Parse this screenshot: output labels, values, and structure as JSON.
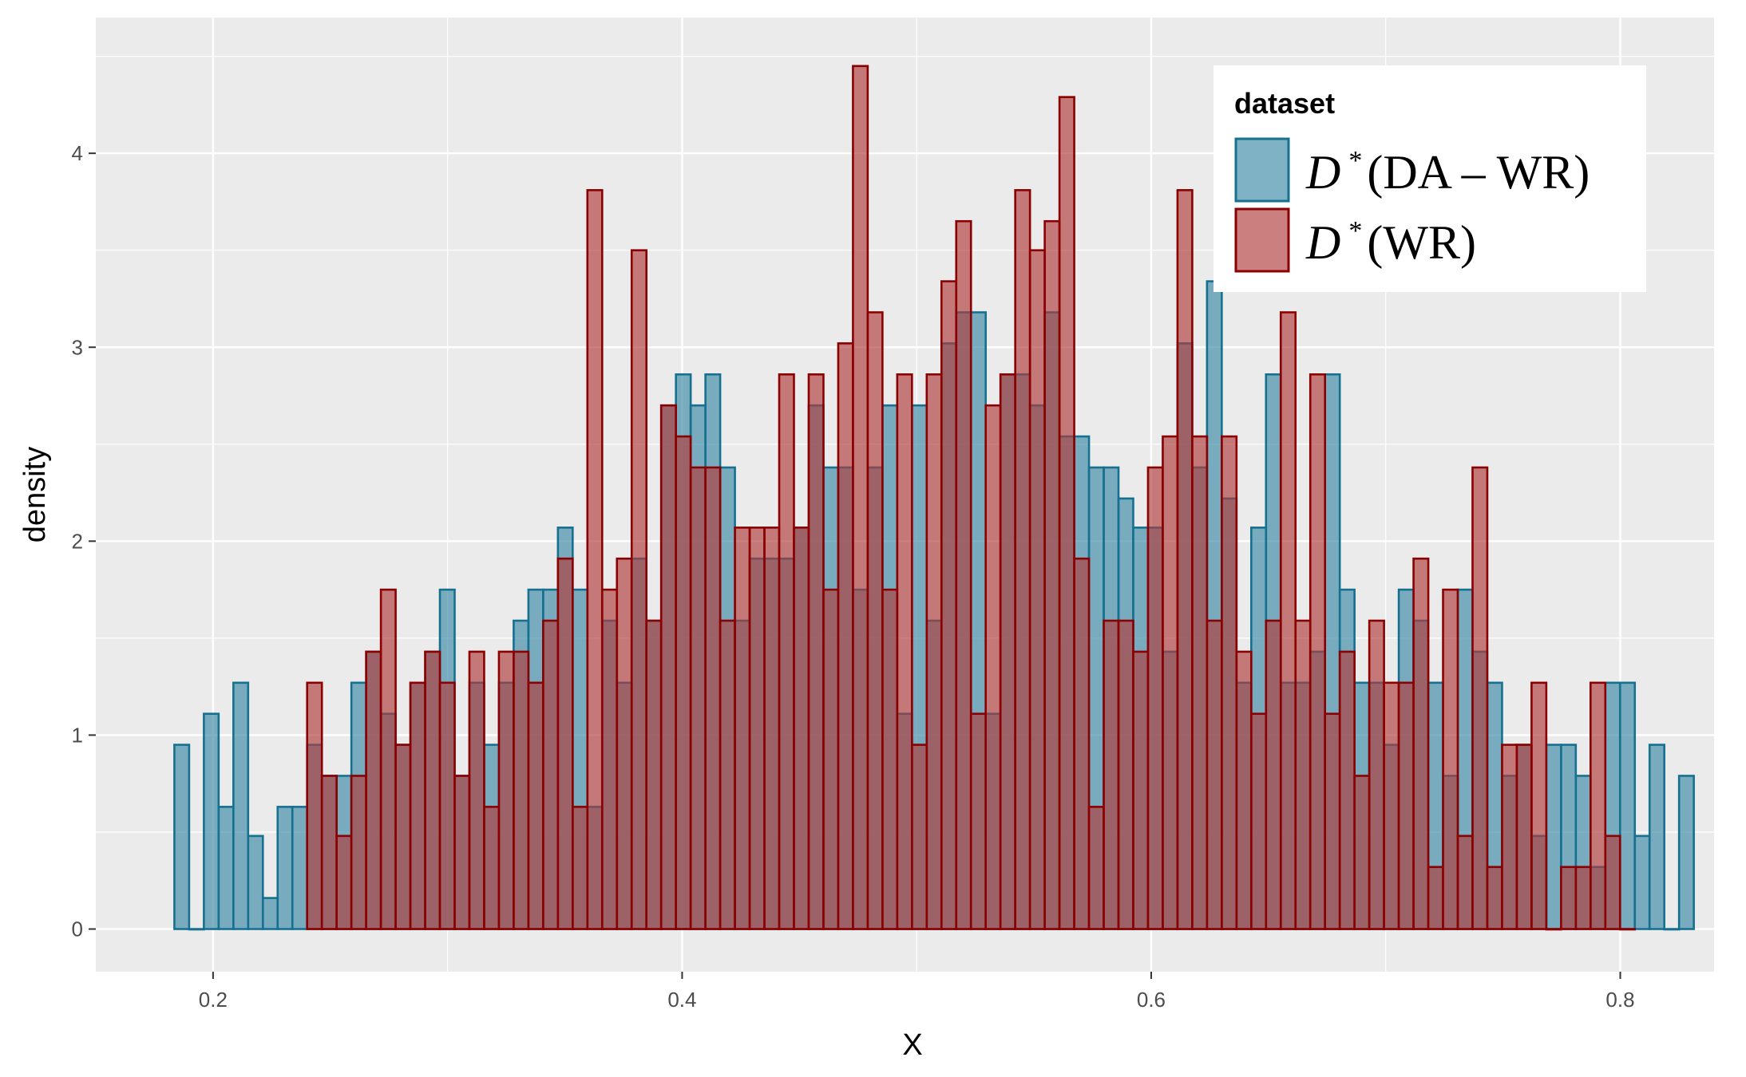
{
  "chart_data": {
    "type": "histogram",
    "xlabel": "X",
    "ylabel": "density",
    "xlim": [
      0.15,
      0.84
    ],
    "ylim": [
      -0.22,
      4.7
    ],
    "x_ticks": [
      0.2,
      0.4,
      0.6,
      0.8
    ],
    "x_tick_labels": [
      "0.2",
      "0.4",
      "0.6",
      "0.8"
    ],
    "y_ticks": [
      0,
      1,
      2,
      3,
      4
    ],
    "y_tick_labels": [
      "0",
      "1",
      "2",
      "3",
      "4"
    ],
    "grid": true,
    "legend": {
      "title": "dataset",
      "placement": "top-right",
      "entries": [
        {
          "math": "D",
          "sup": "*",
          "text": "(DA – WR)",
          "series_index": 0
        },
        {
          "math": "D",
          "sup": "*",
          "text": "(WR)",
          "series_index": 1
        }
      ]
    },
    "bin_start": 0.1835,
    "bin_width": 0.00629,
    "series": [
      {
        "fill": "#3b89a6",
        "stroke": "#16708f",
        "values": [
          0.95,
          0,
          1.11,
          0.63,
          1.27,
          0.48,
          0.16,
          0.63,
          0.63,
          0.95,
          0.79,
          0.79,
          1.27,
          1.43,
          1.11,
          0.95,
          1.27,
          1.43,
          1.75,
          0.79,
          1.27,
          0.95,
          1.27,
          1.59,
          1.75,
          1.75,
          2.07,
          1.75,
          0.63,
          1.59,
          1.27,
          1.91,
          1.59,
          2.7,
          2.86,
          2.7,
          2.86,
          2.38,
          1.59,
          1.91,
          1.91,
          1.91,
          2.07,
          2.7,
          2.38,
          2.38,
          1.75,
          2.38,
          2.7,
          1.11,
          2.7,
          1.59,
          3.02,
          3.18,
          3.18,
          1.11,
          2.86,
          2.86,
          2.7,
          3.18,
          2.54,
          2.54,
          2.38,
          2.38,
          2.22,
          2.07,
          2.07,
          1.43,
          3.02,
          2.38,
          3.34,
          2.22,
          1.27,
          2.07,
          2.86,
          1.27,
          1.27,
          1.43,
          2.86,
          1.75,
          1.27,
          1.27,
          0.95,
          1.75,
          1.59,
          1.27,
          0.79,
          1.75,
          1.43,
          1.27,
          0.79,
          0.95,
          0.48,
          0.95,
          0.95,
          0.79,
          0.32,
          1.27,
          1.27,
          0.48,
          0.95,
          0,
          0.79
        ]
      },
      {
        "fill": "#b03a3a",
        "stroke": "#8b0000",
        "values": [
          null,
          null,
          null,
          null,
          null,
          null,
          null,
          null,
          null,
          1.27,
          0.79,
          0.48,
          0.79,
          1.43,
          1.75,
          0.95,
          1.27,
          1.43,
          1.27,
          0.79,
          1.43,
          0.63,
          1.43,
          1.43,
          1.27,
          1.59,
          1.91,
          0.63,
          3.81,
          1.75,
          1.91,
          3.5,
          1.59,
          2.7,
          2.54,
          2.38,
          2.38,
          1.59,
          2.07,
          2.07,
          2.07,
          2.86,
          2.07,
          2.86,
          1.75,
          3.02,
          4.45,
          3.18,
          1.75,
          2.86,
          0.95,
          2.86,
          3.34,
          3.65,
          1.11,
          2.7,
          2.86,
          3.81,
          3.5,
          3.65,
          4.29,
          1.91,
          0.63,
          1.59,
          1.59,
          1.43,
          2.38,
          2.54,
          3.81,
          2.54,
          1.59,
          2.54,
          1.43,
          1.11,
          1.59,
          3.18,
          1.59,
          2.86,
          1.11,
          1.43,
          0.79,
          1.59,
          1.27,
          1.27,
          1.91,
          0.32,
          1.75,
          0.48,
          2.38,
          0.32,
          0.95,
          0.95,
          1.27,
          0,
          0.32,
          0.32,
          1.27,
          0.48,
          0
        ]
      }
    ]
  }
}
